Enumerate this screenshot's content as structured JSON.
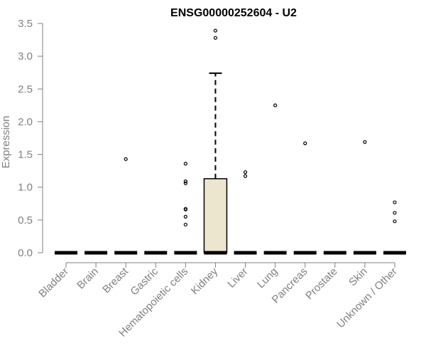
{
  "chart_data": {
    "type": "box",
    "title": "ENSG00000252604 - U2",
    "xlabel": "",
    "ylabel": "Expression",
    "ylim": [
      0,
      3.5
    ],
    "yticks": [
      0.0,
      0.5,
      1.0,
      1.5,
      2.0,
      2.5,
      3.0,
      3.5
    ],
    "ytick_labels": [
      "0.0",
      "0.5",
      "1.0",
      "1.5",
      "2.0",
      "2.5",
      "3.0",
      "3.5"
    ],
    "categories": [
      "Bladder",
      "Brain",
      "Breast",
      "Gastric",
      "Hematopoietic cells",
      "Kidney",
      "Liver",
      "Lung",
      "Pancreas",
      "Prostate",
      "Skin",
      "Unknown / Other"
    ],
    "boxes": [
      {
        "category": "Bladder",
        "q1": 0,
        "median": 0,
        "q3": 0,
        "whisker_low": 0,
        "whisker_high": 0,
        "outliers": []
      },
      {
        "category": "Brain",
        "q1": 0,
        "median": 0,
        "q3": 0,
        "whisker_low": 0,
        "whisker_high": 0,
        "outliers": []
      },
      {
        "category": "Breast",
        "q1": 0,
        "median": 0,
        "q3": 0,
        "whisker_low": 0,
        "whisker_high": 0,
        "outliers": [
          1.43
        ]
      },
      {
        "category": "Gastric",
        "q1": 0,
        "median": 0,
        "q3": 0,
        "whisker_low": 0,
        "whisker_high": 0,
        "outliers": []
      },
      {
        "category": "Hematopoietic cells",
        "q1": 0,
        "median": 0,
        "q3": 0,
        "whisker_low": 0,
        "whisker_high": 0,
        "outliers": [
          1.36,
          1.09,
          1.06,
          0.67,
          0.66,
          0.55,
          0.43
        ]
      },
      {
        "category": "Kidney",
        "q1": 0,
        "median": 0,
        "q3": 1.13,
        "whisker_low": 0,
        "whisker_high": 2.74,
        "outliers": [
          3.39,
          3.28
        ]
      },
      {
        "category": "Liver",
        "q1": 0,
        "median": 0,
        "q3": 0,
        "whisker_low": 0,
        "whisker_high": 0,
        "outliers": [
          1.23,
          1.17
        ]
      },
      {
        "category": "Lung",
        "q1": 0,
        "median": 0,
        "q3": 0,
        "whisker_low": 0,
        "whisker_high": 0,
        "outliers": [
          2.25
        ]
      },
      {
        "category": "Pancreas",
        "q1": 0,
        "median": 0,
        "q3": 0,
        "whisker_low": 0,
        "whisker_high": 0,
        "outliers": [
          1.67
        ]
      },
      {
        "category": "Prostate",
        "q1": 0,
        "median": 0,
        "q3": 0,
        "whisker_low": 0,
        "whisker_high": 0,
        "outliers": []
      },
      {
        "category": "Skin",
        "q1": 0,
        "median": 0,
        "q3": 0,
        "whisker_low": 0,
        "whisker_high": 0,
        "outliers": [
          1.69
        ]
      },
      {
        "category": "Unknown / Other",
        "q1": 0,
        "median": 0,
        "q3": 0,
        "whisker_low": 0,
        "whisker_high": 0,
        "outliers": [
          0.77,
          0.61,
          0.48
        ]
      }
    ],
    "colors": {
      "box_fill": "#ede6cf",
      "box_stroke": "#000000",
      "axis": "#808080",
      "text": "#808080",
      "title": "#000000"
    },
    "grid": false,
    "legend": "none"
  }
}
